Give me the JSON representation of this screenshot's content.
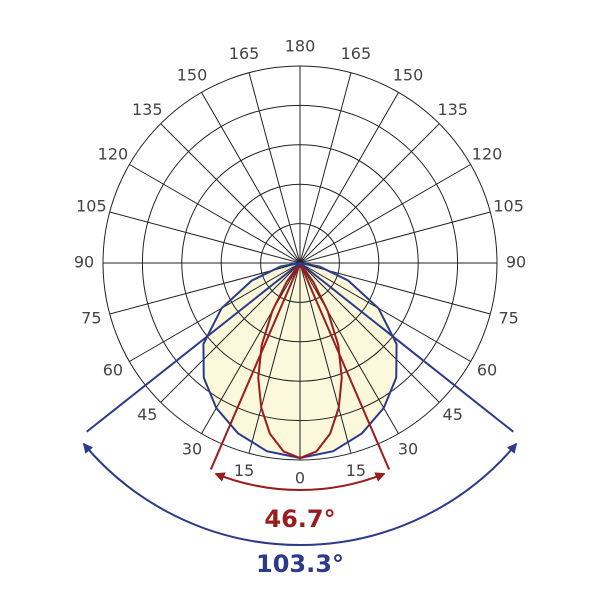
{
  "chart_data": {
    "type": "polar",
    "angle_ticks": [
      0,
      15,
      30,
      45,
      60,
      75,
      90,
      105,
      120,
      135,
      150,
      165,
      180
    ],
    "rlim": [
      0,
      5
    ],
    "rticks": [
      1,
      2,
      3,
      4,
      5
    ],
    "series": [
      {
        "color": "#2b3a8a",
        "fill": "#fbf8dc",
        "angles": [
          0,
          10,
          20,
          30,
          40,
          50,
          60,
          70,
          80,
          90
        ],
        "values": [
          4.95,
          4.85,
          4.6,
          4.25,
          3.8,
          3.2,
          2.3,
          1.3,
          0.5,
          0
        ]
      },
      {
        "color": "#9b1c1c",
        "angles": [
          0,
          5,
          10,
          15,
          20,
          25,
          30,
          35,
          40
        ],
        "values": [
          4.95,
          4.8,
          4.4,
          3.8,
          3.1,
          2.3,
          1.4,
          0.6,
          0
        ]
      }
    ],
    "beam_angles": [
      {
        "value": 46.7,
        "label": "46.7°",
        "color": "#9b1c1c"
      },
      {
        "value": 103.3,
        "label": "103.3°",
        "color": "#2b3a8a"
      }
    ]
  }
}
